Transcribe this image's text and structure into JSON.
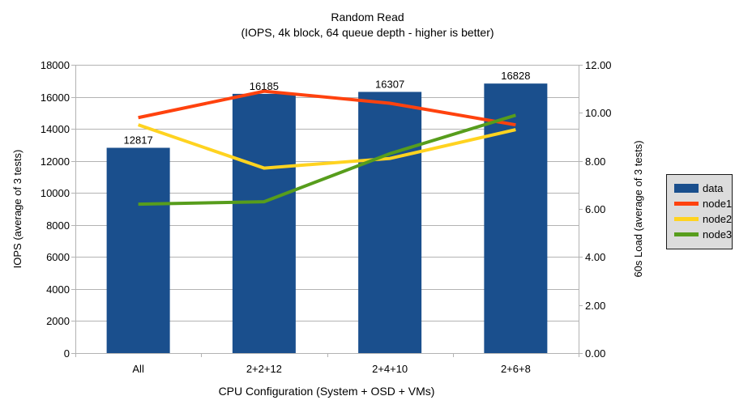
{
  "title": "Random Read",
  "subtitle": "(IOPS, 4k block, 64 queue depth - higher is better)",
  "chart_data": {
    "type": "bar",
    "title": "Random Read",
    "subtitle": "(IOPS, 4k block, 64 queue depth - higher is better)",
    "categories": [
      "All",
      "2+2+12",
      "2+4+10",
      "2+6+8"
    ],
    "series": [
      {
        "name": "data",
        "type": "bar",
        "axis": "left",
        "color": "#1A4F8D",
        "values": [
          12817,
          16185,
          16307,
          16828
        ],
        "data_labels": [
          "12817",
          "16185",
          "16307",
          "16828"
        ]
      },
      {
        "name": "node1",
        "type": "line",
        "axis": "right",
        "color": "#FF420E",
        "values": [
          9.8,
          10.9,
          10.4,
          9.5
        ]
      },
      {
        "name": "node2",
        "type": "line",
        "axis": "right",
        "color": "#FFD320",
        "values": [
          9.5,
          7.7,
          8.1,
          9.3
        ]
      },
      {
        "name": "node3",
        "type": "line",
        "axis": "right",
        "color": "#579D1C",
        "values": [
          6.2,
          6.3,
          8.3,
          9.9
        ]
      }
    ],
    "xlabel": "CPU Configuration (System + OSD + VMs)",
    "ylabel_left": "IOPS (average of 3 tests)",
    "ylabel_right": "60s Load (average of 3 tests)",
    "ylim_left": [
      0,
      18000
    ],
    "ylim_right": [
      0,
      12
    ],
    "left_tick_labels": [
      "0",
      "2000",
      "4000",
      "6000",
      "8000",
      "10000",
      "12000",
      "14000",
      "16000",
      "18000"
    ],
    "right_tick_labels": [
      "0.00",
      "2.00",
      "4.00",
      "6.00",
      "8.00",
      "10.00",
      "12.00"
    ],
    "grid": "horizontal",
    "legend_position": "right"
  },
  "legend": {
    "items": [
      {
        "label": "data",
        "color": "#1A4F8D",
        "shape": "bar"
      },
      {
        "label": "node1",
        "color": "#FF420E",
        "shape": "line"
      },
      {
        "label": "node2",
        "color": "#FFD320",
        "shape": "line"
      },
      {
        "label": "node3",
        "color": "#579D1C",
        "shape": "line"
      }
    ]
  },
  "colors": {
    "background": "#FFFFFF",
    "grid": "#B3B3B3",
    "axis": "#B3B3B3",
    "text": "#000000",
    "legend_background": "#DCDCDC",
    "legend_border": "#1A1A1A"
  }
}
